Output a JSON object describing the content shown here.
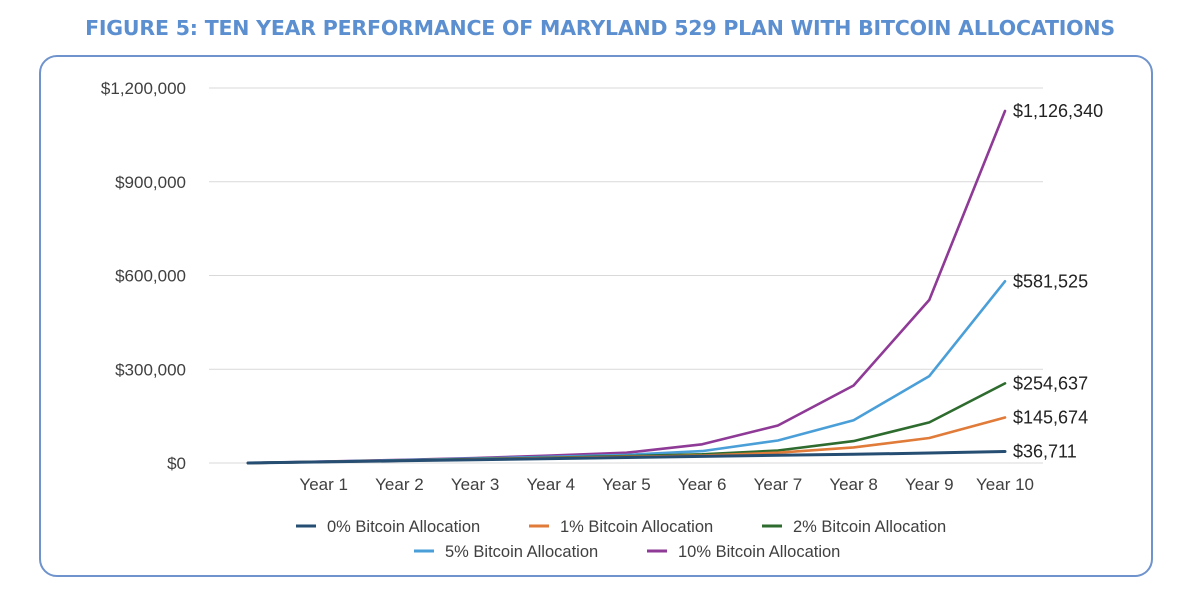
{
  "colors": {
    "title": "#5b8fd0",
    "frame": "#6f93cc",
    "grid": "#d9d9d9"
  },
  "chart_data": {
    "type": "line",
    "title": "FIGURE 5: TEN YEAR PERFORMANCE OF MARYLAND 529 PLAN WITH BITCOIN ALLOCATIONS",
    "xlabel": "",
    "ylabel": "",
    "categories": [
      "",
      "Year 1",
      "Year 2",
      "Year 3",
      "Year 4",
      "Year 5",
      "Year 6",
      "Year 7",
      "Year 8",
      "Year 9",
      "Year 10"
    ],
    "ylim": [
      0,
      1200000
    ],
    "yticks": [
      0,
      300000,
      600000,
      900000,
      1200000
    ],
    "ytick_labels": [
      "$0",
      "$300,000",
      "$600,000",
      "$900,000",
      "$1,200,000"
    ],
    "grid": true,
    "legend_position": "bottom",
    "series": [
      {
        "name": "0% Bitcoin Allocation",
        "color": "#264e73",
        "values": [
          0,
          3500,
          7000,
          10500,
          14000,
          17500,
          21000,
          24500,
          28000,
          32000,
          36711
        ],
        "end_label": "$36,711"
      },
      {
        "name": "1% Bitcoin Allocation",
        "color": "#e07b39",
        "values": [
          0,
          3700,
          7500,
          11500,
          16000,
          20000,
          24000,
          33000,
          50000,
          80000,
          145674
        ],
        "end_label": "$145,674"
      },
      {
        "name": "2% Bitcoin Allocation",
        "color": "#2e6b2e",
        "values": [
          0,
          3900,
          8000,
          12500,
          17000,
          22000,
          28000,
          40000,
          70000,
          130000,
          254637
        ],
        "end_label": "$254,637"
      },
      {
        "name": "5% Bitcoin Allocation",
        "color": "#4a9fd8",
        "values": [
          0,
          4200,
          9000,
          14000,
          20000,
          26000,
          38000,
          72000,
          137000,
          278000,
          581525
        ],
        "end_label": "$581,525"
      },
      {
        "name": "10% Bitcoin Allocation",
        "color": "#8e3a96",
        "values": [
          0,
          4800,
          10000,
          16000,
          24000,
          33000,
          60000,
          120000,
          248000,
          522000,
          1126340
        ],
        "end_label": "$1,126,340"
      }
    ]
  }
}
